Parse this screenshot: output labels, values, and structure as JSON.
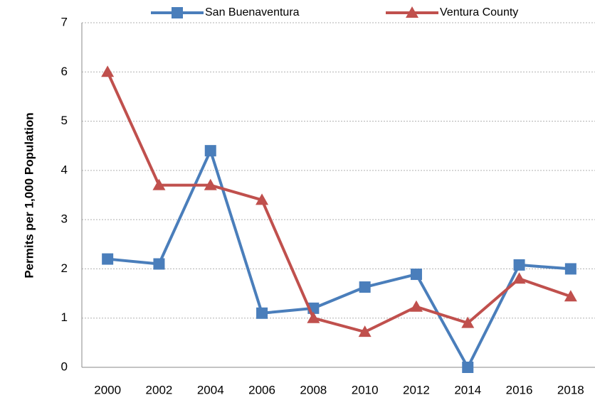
{
  "chart_data": {
    "type": "line",
    "y_label": "Permits per 1,000 Population",
    "categories": [
      "2000",
      "2002",
      "2004",
      "2006",
      "2008",
      "2010",
      "2012",
      "2014",
      "2016",
      "2018"
    ],
    "series": [
      {
        "name": "San Buenaventura",
        "color": "#4a7ebb",
        "marker": "square",
        "values": [
          2.2,
          2.1,
          4.4,
          1.1,
          1.2,
          1.63,
          1.89,
          0,
          2.08,
          2.0
        ]
      },
      {
        "name": "Ventura County",
        "color": "#c0504d",
        "marker": "triangle",
        "values": [
          6.0,
          3.7,
          3.7,
          3.4,
          1.0,
          0.72,
          1.23,
          0.9,
          1.8,
          1.44
        ]
      }
    ],
    "ylim": [
      0,
      7
    ],
    "yticks": [
      0,
      1,
      2,
      3,
      4,
      5,
      6,
      7
    ],
    "grid": true,
    "legend": "top"
  }
}
